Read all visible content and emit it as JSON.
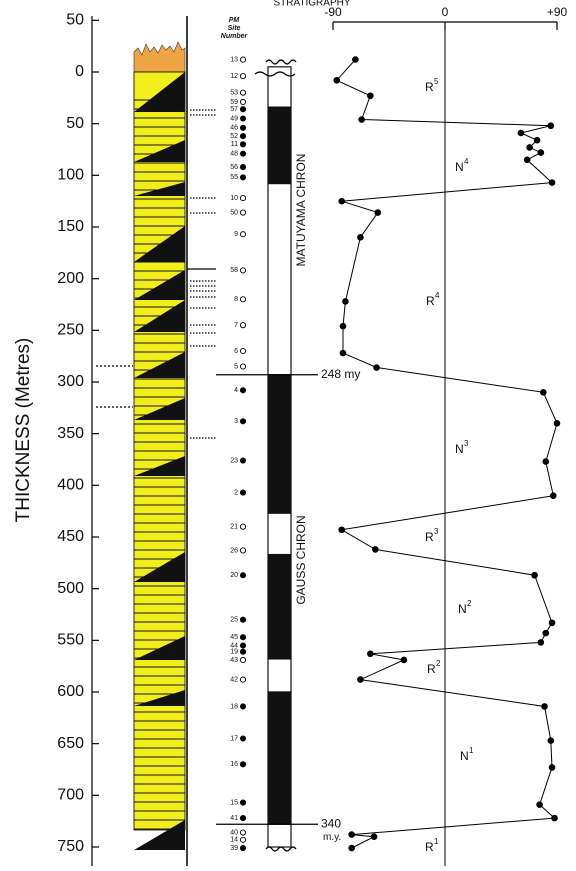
{
  "chart_data": {
    "type": "depth-log",
    "title": "STRATIGRAPHY",
    "y_label": "THICKNESS (Metres)",
    "ylim": [
      -50,
      750
    ],
    "yticks": [
      {
        "value": -50,
        "label": "50"
      },
      0,
      50,
      100,
      150,
      200,
      250,
      300,
      350,
      400,
      450,
      500,
      550,
      600,
      650,
      700,
      750
    ],
    "xlim": [
      -90,
      90
    ],
    "xticks": [
      -90,
      0,
      {
        "value": 90,
        "label": "+90"
      }
    ],
    "curve": {
      "color": "#000000",
      "depth": [
        -12,
        8,
        23,
        46,
        52,
        59,
        66,
        73,
        78,
        85,
        107,
        125,
        136,
        160,
        222,
        246,
        272,
        286,
        310,
        340,
        377,
        410,
        443,
        462,
        487,
        533,
        543,
        552,
        563,
        569,
        588,
        614,
        647,
        673,
        709,
        722,
        738,
        740,
        751
      ],
      "latitude": [
        -72,
        -87,
        -60,
        -67,
        85,
        61,
        74,
        68,
        77,
        66,
        86,
        -83,
        -54,
        -68,
        -80,
        -82,
        -82,
        -55,
        79,
        90,
        81,
        87,
        -83,
        -56,
        72,
        86,
        81,
        77,
        -60,
        -33,
        -68,
        80,
        85,
        86,
        76,
        88,
        -75,
        -57,
        -75
      ]
    },
    "polarity": [
      {
        "top": -5,
        "bottom": 34,
        "normal": false
      },
      {
        "top": 34,
        "bottom": 108,
        "normal": true
      },
      {
        "top": 108,
        "bottom": 293,
        "normal": false
      },
      {
        "top": 293,
        "bottom": 427,
        "normal": true
      },
      {
        "top": 427,
        "bottom": 467,
        "normal": false
      },
      {
        "top": 467,
        "bottom": 568,
        "normal": true
      },
      {
        "top": 568,
        "bottom": 600,
        "normal": false
      },
      {
        "top": 600,
        "bottom": 728,
        "normal": true
      },
      {
        "top": 728,
        "bottom": 750,
        "normal": false
      }
    ],
    "chrons": [
      "MATUYAMA CHRON",
      "GAUSS CHRON"
    ],
    "ages": [
      {
        "label": "248 my",
        "depth": 293
      },
      {
        "label": "340",
        "unit": "m.y.",
        "depth": 728
      }
    ],
    "zones": [
      {
        "name": "R",
        "sup": "5"
      },
      {
        "name": "N",
        "sup": "4"
      },
      {
        "name": "R",
        "sup": "4"
      },
      {
        "name": "N",
        "sup": "3"
      },
      {
        "name": "R",
        "sup": "3"
      },
      {
        "name": "N",
        "sup": "2"
      },
      {
        "name": "R",
        "sup": "2"
      },
      {
        "name": "N",
        "sup": "1"
      },
      {
        "name": "R",
        "sup": "1"
      }
    ],
    "site_header": [
      "PM",
      "Site",
      "Number"
    ],
    "sites": [
      {
        "label": "13",
        "depth": -12,
        "normal": false
      },
      {
        "label": "12",
        "depth": 4,
        "normal": false
      },
      {
        "label": "53",
        "depth": 20,
        "normal": false
      },
      {
        "label": "59",
        "depth": 29,
        "normal": false
      },
      {
        "label": "57",
        "depth": 36,
        "normal": true
      },
      {
        "label": "49",
        "depth": 45,
        "normal": true
      },
      {
        "label": "46",
        "depth": 54,
        "normal": true
      },
      {
        "label": "52",
        "depth": 62,
        "normal": true
      },
      {
        "label": "11",
        "depth": 70,
        "normal": true
      },
      {
        "label": "48",
        "depth": 79,
        "normal": true
      },
      {
        "label": "56",
        "depth": 92,
        "normal": true
      },
      {
        "label": "55",
        "depth": 102,
        "normal": true
      },
      {
        "label": "10",
        "depth": 122,
        "normal": false
      },
      {
        "label": "50",
        "depth": 136,
        "normal": false
      },
      {
        "label": "9",
        "depth": 157,
        "normal": false
      },
      {
        "label": "58",
        "depth": 192,
        "normal": false
      },
      {
        "label": "8",
        "depth": 220,
        "normal": false
      },
      {
        "label": "7",
        "depth": 245,
        "normal": false
      },
      {
        "label": "6",
        "depth": 270,
        "normal": false
      },
      {
        "label": "5",
        "depth": 285,
        "normal": false
      },
      {
        "label": "4",
        "depth": 308,
        "normal": true
      },
      {
        "label": "3",
        "depth": 338,
        "normal": true
      },
      {
        "label": "23",
        "depth": 376,
        "normal": true
      },
      {
        "label": "2",
        "depth": 407,
        "normal": true
      },
      {
        "label": "21",
        "depth": 440,
        "normal": false
      },
      {
        "label": "26",
        "depth": 463,
        "normal": false
      },
      {
        "label": "20",
        "depth": 487,
        "normal": true
      },
      {
        "label": "25",
        "depth": 530,
        "normal": true
      },
      {
        "label": "45",
        "depth": 547,
        "normal": true
      },
      {
        "label": "44",
        "depth": 555,
        "normal": true
      },
      {
        "label": "19",
        "depth": 561,
        "normal": true
      },
      {
        "label": "43",
        "depth": 569,
        "normal": false
      },
      {
        "label": "42",
        "depth": 588,
        "normal": false
      },
      {
        "label": "18",
        "depth": 614,
        "normal": true
      },
      {
        "label": "17",
        "depth": 645,
        "normal": true
      },
      {
        "label": "16",
        "depth": 670,
        "normal": true
      },
      {
        "label": "15",
        "depth": 707,
        "normal": true
      },
      {
        "label": "41",
        "depth": 722,
        "normal": true
      },
      {
        "label": "40",
        "depth": 736,
        "normal": false
      },
      {
        "label": "14",
        "depth": 743,
        "normal": false
      },
      {
        "label": "39",
        "depth": 751,
        "normal": true
      }
    ]
  }
}
